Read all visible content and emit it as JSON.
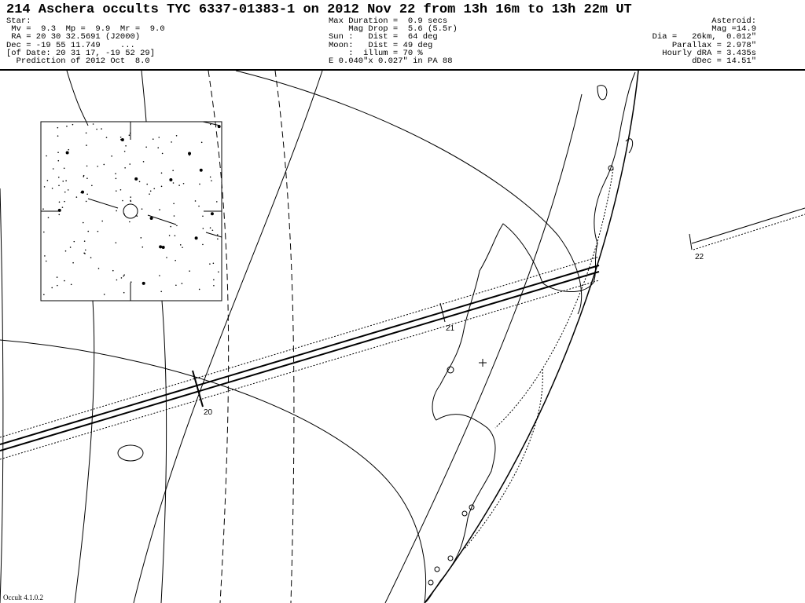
{
  "title": "214 Aschera occults TYC 6337-01383-1 on 2012 Nov 22 from 13h 16m to 13h 22m UT",
  "star": [
    "Star:",
    " Mv =  9.3  Mp =  9.9  Mr =  9.0",
    " RA = 20 30 32.5691 (J2000)",
    "Dec = -19 55 11.749    ...",
    "[of Date: 20 31 17, -19 52 29]",
    "  Prediction of 2012 Oct  8.0"
  ],
  "event": [
    "Max Duration =  0.9 secs",
    "    Mag Drop =  5.6 (5.5r)",
    "Sun :   Dist =  64 deg",
    "Moon:   Dist = 49 deg",
    "    :  illum = 70 %",
    "E 0.040\"x 0.027\" in PA 88"
  ],
  "asteroid": [
    "Asteroid:",
    "Mag =14.9",
    "Dia =   26km,  0.012\"",
    "Parallax = 2.978\"",
    "Hourly dRA = 3.435s",
    "dDec = 14.51\""
  ],
  "time_labels": [
    "20",
    "21",
    "22"
  ],
  "version": "Occult 4.1.0.2"
}
